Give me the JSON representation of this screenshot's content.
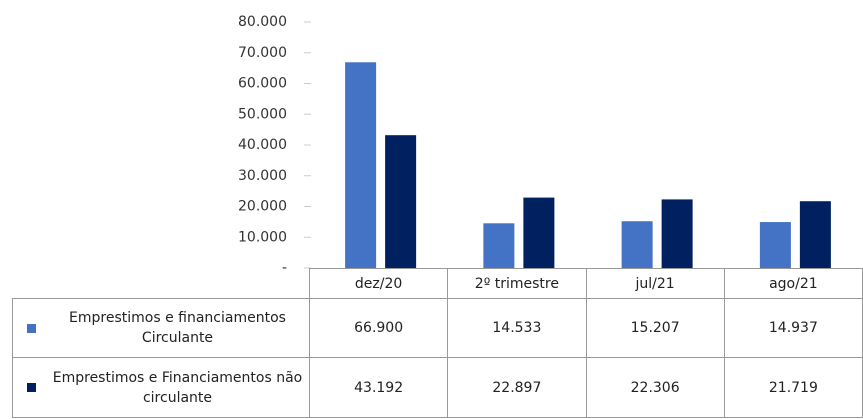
{
  "chart_data": {
    "type": "bar",
    "categories": [
      "dez/20",
      "2º trimestre",
      "jul/21",
      "ago/21"
    ],
    "series": [
      {
        "name": "Emprestimos e financiamentos Circulante",
        "color": "#4472c4",
        "values": [
          66900,
          14533,
          15207,
          14937
        ],
        "value_labels": [
          "66.900",
          "14.533",
          "15.207",
          "14.937"
        ]
      },
      {
        "name": "Emprestimos e Financiamentos não circulante",
        "color": "#002060",
        "values": [
          43192,
          22897,
          22306,
          21719
        ],
        "value_labels": [
          "43.192",
          "22.897",
          "22.306",
          "21.719"
        ]
      }
    ],
    "ylim": [
      0,
      80000
    ],
    "yticks": [
      {
        "value": 0,
        "label": "-"
      },
      {
        "value": 10000,
        "label": "10.000"
      },
      {
        "value": 20000,
        "label": "20.000"
      },
      {
        "value": 30000,
        "label": "30.000"
      },
      {
        "value": 40000,
        "label": "40.000"
      },
      {
        "value": 50000,
        "label": "50.000"
      },
      {
        "value": 60000,
        "label": "60.000"
      },
      {
        "value": 70000,
        "label": "70.000"
      },
      {
        "value": 80000,
        "label": "80.000"
      }
    ],
    "grid": false
  }
}
